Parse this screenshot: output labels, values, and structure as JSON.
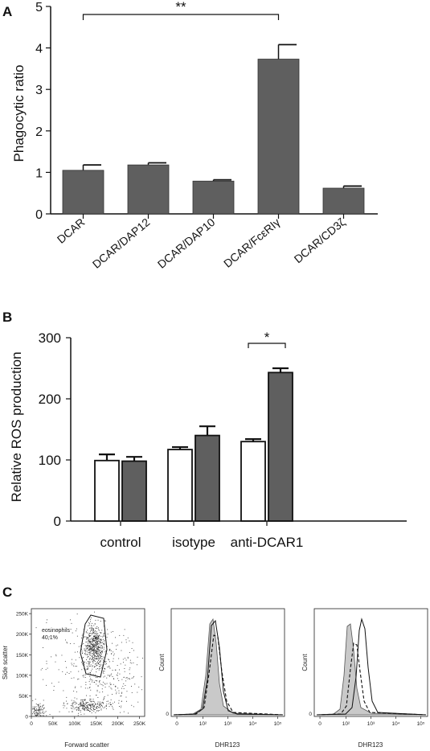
{
  "panels": {
    "a": "A",
    "b": "B",
    "c": "C"
  },
  "chart_data": [
    {
      "type": "bar",
      "panel": "A",
      "ylabel": "Phagocytic ratio",
      "ylim": [
        0,
        5
      ],
      "yticks": [
        "0",
        "1",
        "2",
        "3",
        "4",
        "5"
      ],
      "categories": [
        "DCAR",
        "DCAR/DAP12",
        "DCAR/DAP10",
        "DCAR/FcεRIγ",
        "DCAR/CD3ζ"
      ],
      "values": [
        1.05,
        1.18,
        0.79,
        3.73,
        0.62
      ],
      "errors": [
        0.13,
        0.05,
        0.03,
        0.35,
        0.05
      ],
      "bar_color": "#5f5f5f",
      "significance": {
        "from": 0,
        "to": 3,
        "label": "**"
      }
    },
    {
      "type": "bar",
      "panel": "B",
      "ylabel": "Relative ROS production",
      "ylim": [
        0,
        300
      ],
      "yticks": [
        "0",
        "100",
        "200",
        "300"
      ],
      "categories": [
        "control",
        "isotype",
        "anti-DCAR1"
      ],
      "series": [
        {
          "values": [
            99,
            117,
            130
          ],
          "errors": [
            10,
            4,
            4
          ],
          "color": "#ffffff"
        },
        {
          "values": [
            98,
            140,
            243
          ],
          "errors": [
            7,
            15,
            7
          ],
          "color": "#5f5f5f"
        }
      ],
      "significance": {
        "group": 2,
        "label": "*"
      }
    },
    {
      "type": "scatter",
      "panel": "C-1",
      "xlabel": "Forward scatter",
      "ylabel": "Side scatter",
      "xticks": [
        "0",
        "50K",
        "100K",
        "150K",
        "200K",
        "250K"
      ],
      "yticks": [
        "0",
        "50K",
        "100K",
        "150K",
        "200K",
        "250K"
      ],
      "xlim": [
        0,
        262000
      ],
      "ylim": [
        0,
        262000
      ],
      "gate": {
        "name": "eosinophils",
        "value": "40,1%"
      }
    },
    {
      "type": "area",
      "panel": "C-2",
      "xlabel": "DHR123",
      "ylabel": "Count",
      "xticks": [
        "0",
        "10²",
        "10³",
        "10⁴",
        "10⁵"
      ]
    },
    {
      "type": "area",
      "panel": "C-3",
      "xlabel": "DHR123",
      "ylabel": "Count",
      "xticks": [
        "0",
        "10²",
        "10³",
        "10⁴",
        "10⁵"
      ]
    }
  ]
}
